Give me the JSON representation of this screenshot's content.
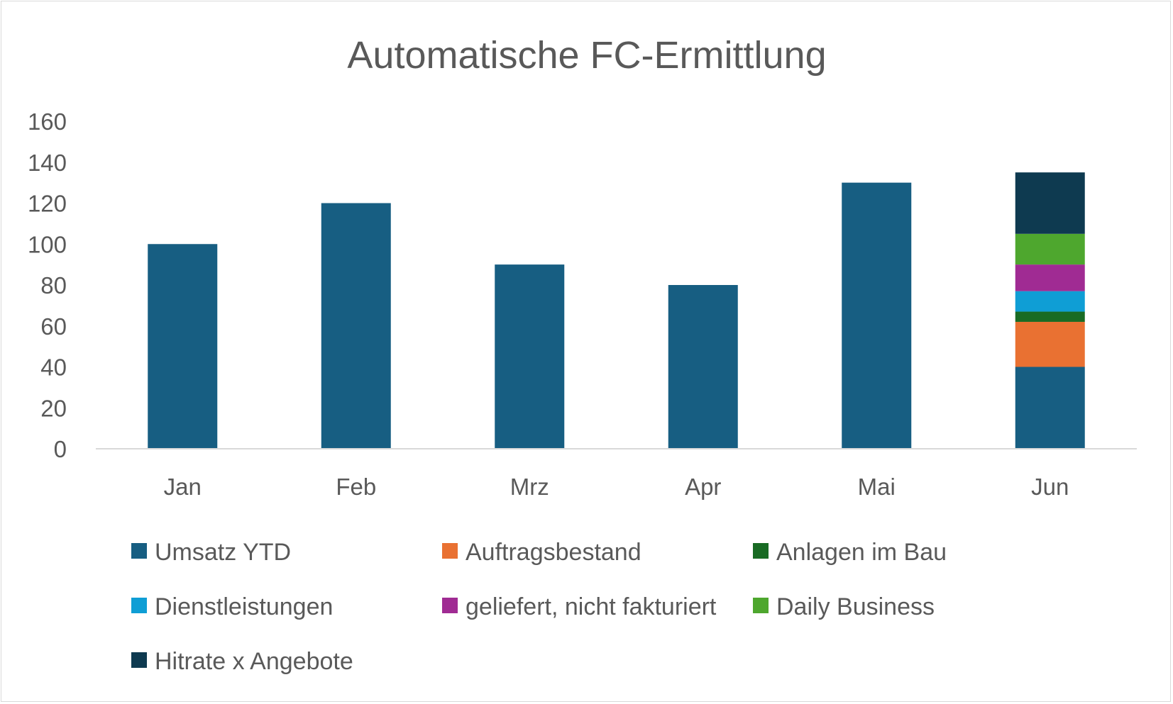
{
  "chart_data": {
    "type": "bar",
    "stacked": true,
    "title": "Automatische FC-Ermittlung",
    "xlabel": "",
    "ylabel": "",
    "categories": [
      "Jan",
      "Feb",
      "Mrz",
      "Apr",
      "Mai",
      "Jun"
    ],
    "ylim": [
      0,
      160
    ],
    "yticks": [
      "0",
      "20",
      "40",
      "60",
      "80",
      "100",
      "120",
      "140",
      "160"
    ],
    "grid": false,
    "legend_position": "bottom",
    "series": [
      {
        "name": "Umsatz YTD",
        "color": "#175E82",
        "values": [
          100,
          120,
          90,
          80,
          130,
          40
        ]
      },
      {
        "name": "Auftragsbestand",
        "color": "#E97132",
        "values": [
          0,
          0,
          0,
          0,
          0,
          22
        ]
      },
      {
        "name": "Anlagen im Bau",
        "color": "#196B24",
        "values": [
          0,
          0,
          0,
          0,
          0,
          5
        ]
      },
      {
        "name": "Dienstleistungen",
        "color": "#0F9ED5",
        "values": [
          0,
          0,
          0,
          0,
          0,
          10
        ]
      },
      {
        "name": "geliefert, nicht fakturiert",
        "color": "#A02B93",
        "values": [
          0,
          0,
          0,
          0,
          0,
          13
        ]
      },
      {
        "name": "Daily Business",
        "color": "#4EA72E",
        "values": [
          0,
          0,
          0,
          0,
          0,
          15
        ]
      },
      {
        "name": "Hitrate x Angebote",
        "color": "#0E3A50",
        "values": [
          0,
          0,
          0,
          0,
          0,
          30
        ]
      }
    ]
  }
}
